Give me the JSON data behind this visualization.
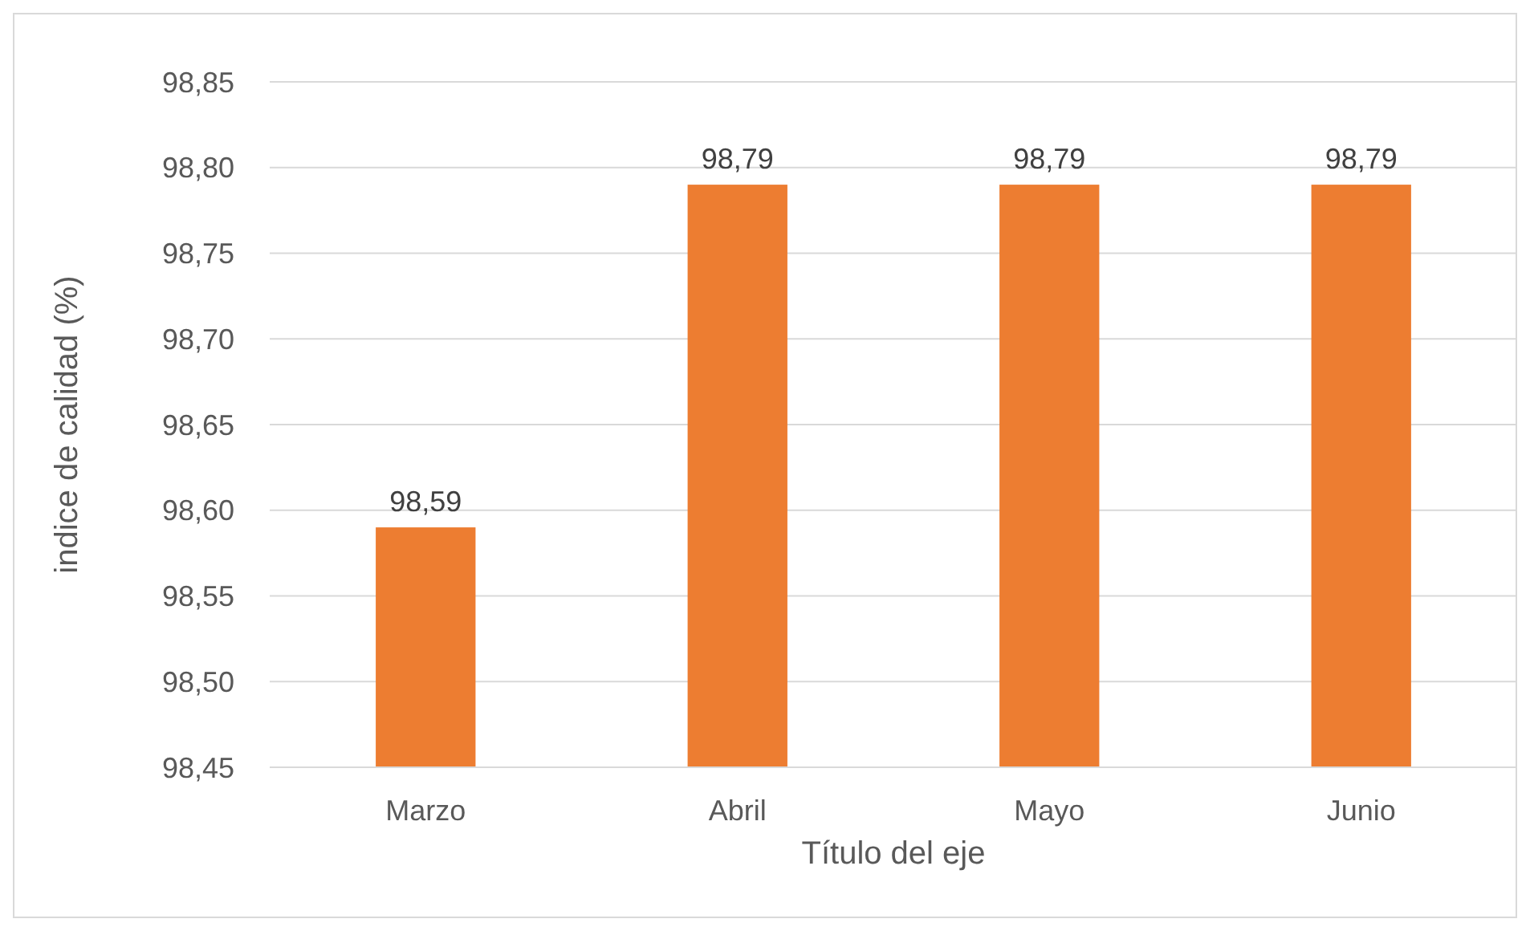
{
  "chart_data": {
    "type": "bar",
    "xlabel": "Título del eje",
    "ylabel": "indice de calidad (%)",
    "categories": [
      "Marzo",
      "Abril",
      "Mayo",
      "Junio"
    ],
    "series": [
      {
        "color": "#ed7d31",
        "values": [
          98.59,
          98.79,
          98.79,
          98.79
        ],
        "value_labels": [
          "98,59",
          "98,79",
          "98,79",
          "98,79"
        ]
      }
    ],
    "ylim": [
      98.45,
      98.85
    ],
    "yticks": [
      {
        "value": 98.45,
        "label": "98,45"
      },
      {
        "value": 98.5,
        "label": "98,50"
      },
      {
        "value": 98.55,
        "label": "98,55"
      },
      {
        "value": 98.6,
        "label": "98,60"
      },
      {
        "value": 98.65,
        "label": "98,65"
      },
      {
        "value": 98.7,
        "label": "98,70"
      },
      {
        "value": 98.75,
        "label": "98,75"
      },
      {
        "value": 98.8,
        "label": "98,80"
      },
      {
        "value": 98.85,
        "label": "98,85"
      }
    ],
    "grid": "y"
  }
}
